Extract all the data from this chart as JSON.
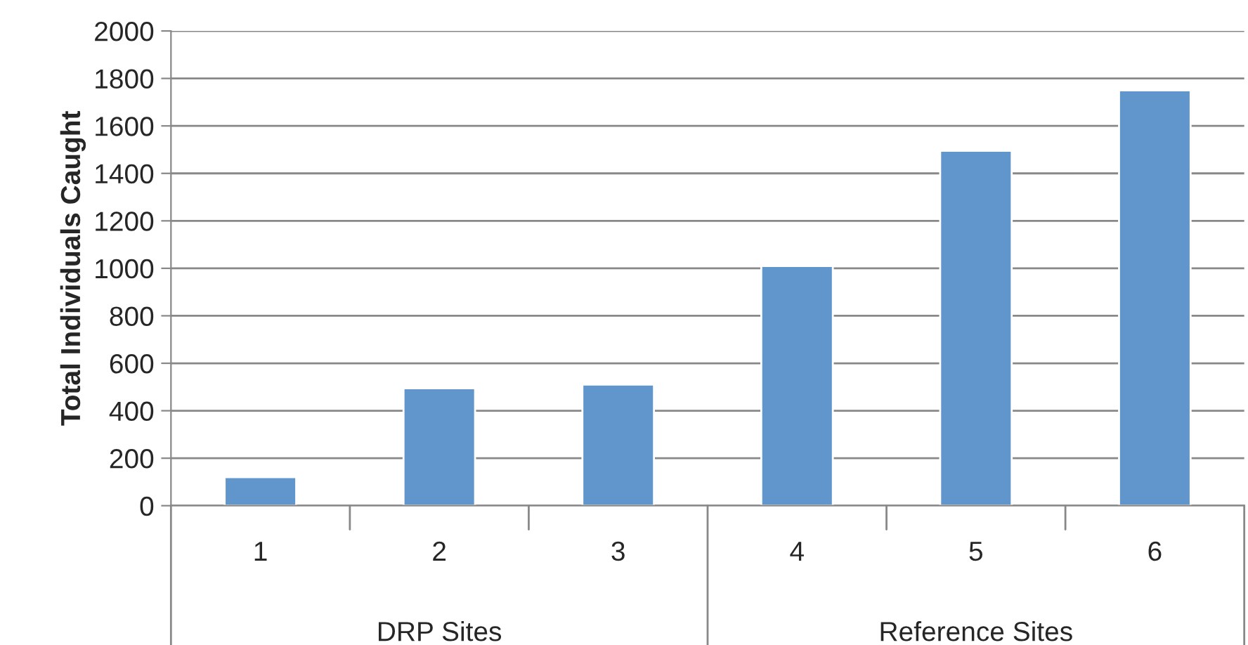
{
  "chart_data": {
    "type": "bar",
    "ylabel": "Total Individuals Caught",
    "categories": [
      "1",
      "2",
      "3",
      "4",
      "5",
      "6"
    ],
    "values": [
      120,
      495,
      510,
      1010,
      1495,
      1750
    ],
    "color": "#6096cb",
    "ylim": [
      0,
      2000
    ],
    "yticks": [
      0,
      200,
      400,
      600,
      800,
      1000,
      1200,
      1400,
      1600,
      1800,
      2000
    ],
    "grid": "y",
    "annotations": [
      "DRP Sites",
      "Reference Sites"
    ]
  }
}
